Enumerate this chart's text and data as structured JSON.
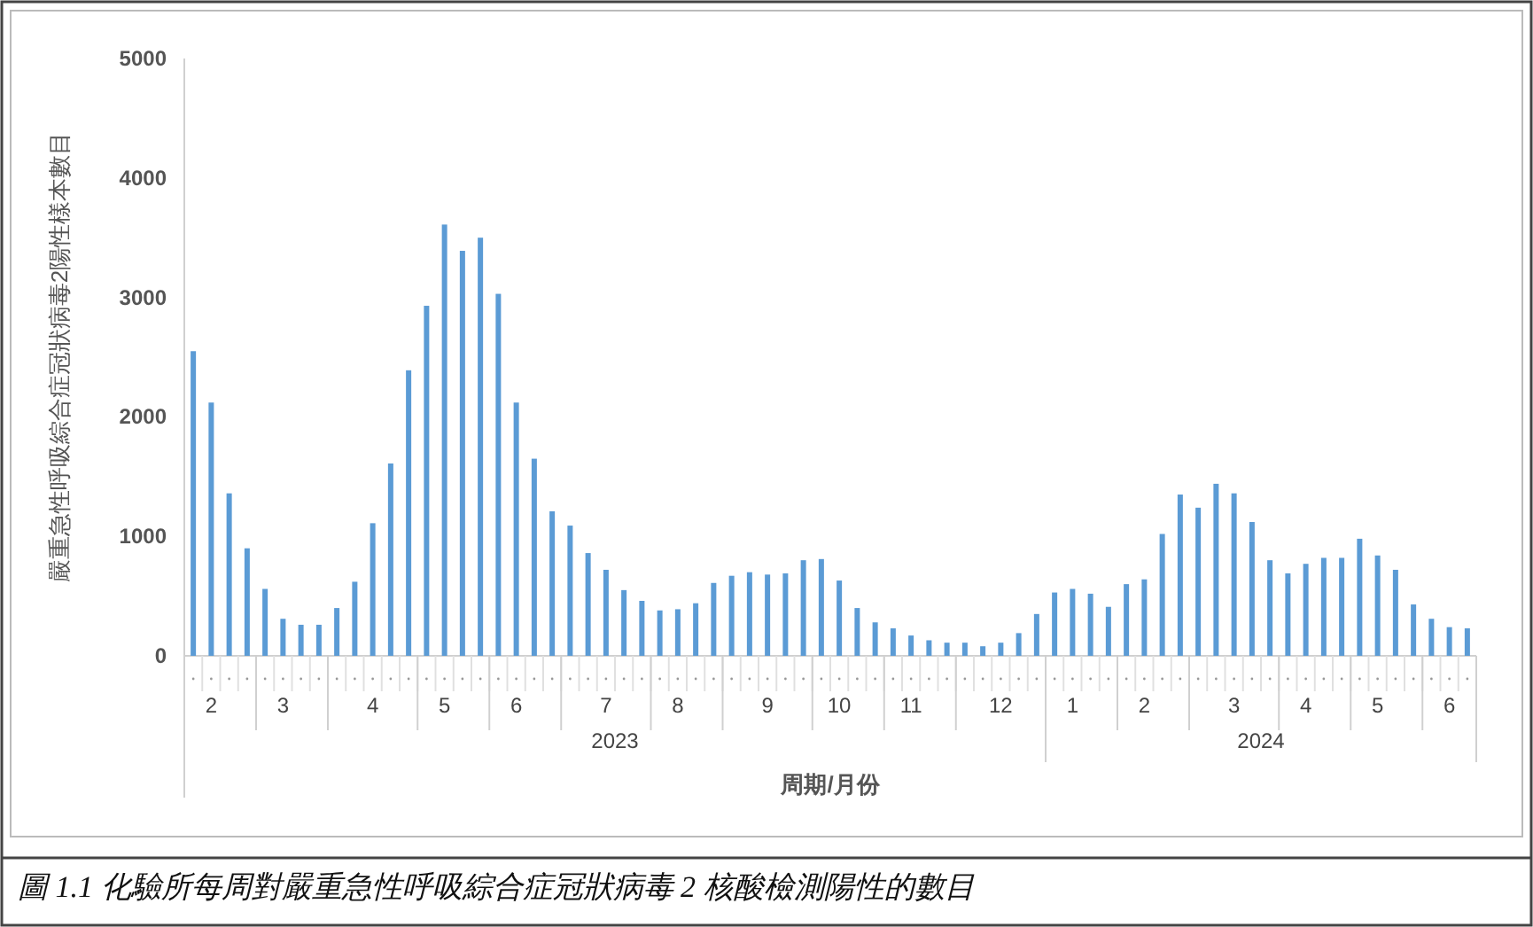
{
  "chart_data": {
    "type": "bar",
    "title": "圖 1.1 化驗所每周對嚴重急性呼吸綜合症冠狀病毒 2 核酸檢測陽性的數目",
    "xlabel": "周期/月份",
    "ylabel": "嚴重急性呼吸綜合症冠狀病毒2陽性樣本數目",
    "categories": [
      null,
      "2",
      null,
      null,
      null,
      "3",
      null,
      null,
      null,
      null,
      "4",
      null,
      null,
      null,
      "5",
      null,
      null,
      null,
      "6",
      null,
      null,
      null,
      null,
      "7",
      null,
      null,
      null,
      "8",
      null,
      null,
      null,
      null,
      "9",
      null,
      null,
      null,
      "10",
      null,
      null,
      null,
      "11",
      null,
      null,
      null,
      null,
      "12",
      null,
      null,
      null,
      "1",
      null,
      null,
      null,
      "2",
      null,
      null,
      null,
      null,
      "3",
      null,
      null,
      null,
      "4",
      null,
      null,
      null,
      "5",
      null,
      null,
      null,
      "6",
      null
    ],
    "values": [
      2550,
      2120,
      1360,
      900,
      560,
      310,
      260,
      260,
      400,
      620,
      1110,
      1610,
      2390,
      2930,
      3610,
      3390,
      3500,
      3030,
      2120,
      1650,
      1210,
      1090,
      860,
      720,
      550,
      460,
      380,
      390,
      440,
      610,
      670,
      700,
      680,
      690,
      800,
      810,
      630,
      400,
      280,
      230,
      170,
      130,
      110,
      110,
      80,
      110,
      190,
      350,
      530,
      560,
      520,
      410,
      600,
      640,
      1020,
      1350,
      1240,
      1440,
      1360,
      1120,
      800,
      690,
      770,
      820,
      820,
      980,
      840,
      720,
      430,
      310,
      240,
      230
    ],
    "color": "#5b9bd5",
    "ylim": [
      0,
      5000
    ],
    "yticks": [
      0,
      1000,
      2000,
      3000,
      4000,
      5000
    ],
    "annotations": [
      "2023",
      "2024"
    ],
    "grid": false
  }
}
